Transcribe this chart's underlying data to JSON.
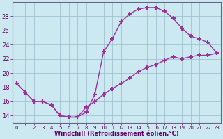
{
  "curve1_x": [
    0,
    1,
    2,
    3,
    4,
    5,
    6,
    7,
    8,
    9,
    10,
    11,
    12,
    13,
    14,
    15,
    16,
    17,
    18,
    19,
    20,
    21,
    22,
    23
  ],
  "curve1_y": [
    18.5,
    17.3,
    16.0,
    16.0,
    15.5,
    14.0,
    13.8,
    13.8,
    14.5,
    17.0,
    23.0,
    24.8,
    27.2,
    28.3,
    29.0,
    29.2,
    29.2,
    28.7,
    27.7,
    26.3,
    25.2,
    24.8,
    24.3,
    22.8
  ],
  "curve2_x": [
    0,
    1,
    2,
    3,
    4,
    5,
    6,
    7,
    8,
    9,
    10,
    11,
    12,
    13,
    14,
    15,
    16,
    17,
    18,
    19,
    20,
    21,
    22,
    23
  ],
  "curve2_y": [
    18.5,
    17.3,
    16.0,
    16.0,
    15.5,
    14.0,
    13.8,
    13.8,
    15.2,
    16.0,
    17.0,
    17.8,
    18.5,
    19.3,
    20.2,
    20.8,
    21.2,
    21.8,
    22.3,
    22.0,
    22.3,
    22.5,
    22.5,
    22.8
  ],
  "line_color": "#993399",
  "marker": "+",
  "bg_color": "#cce8f0",
  "grid_color": "#99bbcc",
  "xlabel": "Windchill (Refroidissement éolien,°C)",
  "xlim": [
    -0.5,
    23.5
  ],
  "ylim": [
    13.0,
    30.0
  ],
  "yticks": [
    14,
    16,
    18,
    20,
    22,
    24,
    26,
    28
  ],
  "xticks": [
    0,
    1,
    2,
    3,
    4,
    5,
    6,
    7,
    8,
    9,
    10,
    11,
    12,
    13,
    14,
    15,
    16,
    17,
    18,
    19,
    20,
    21,
    22,
    23
  ]
}
